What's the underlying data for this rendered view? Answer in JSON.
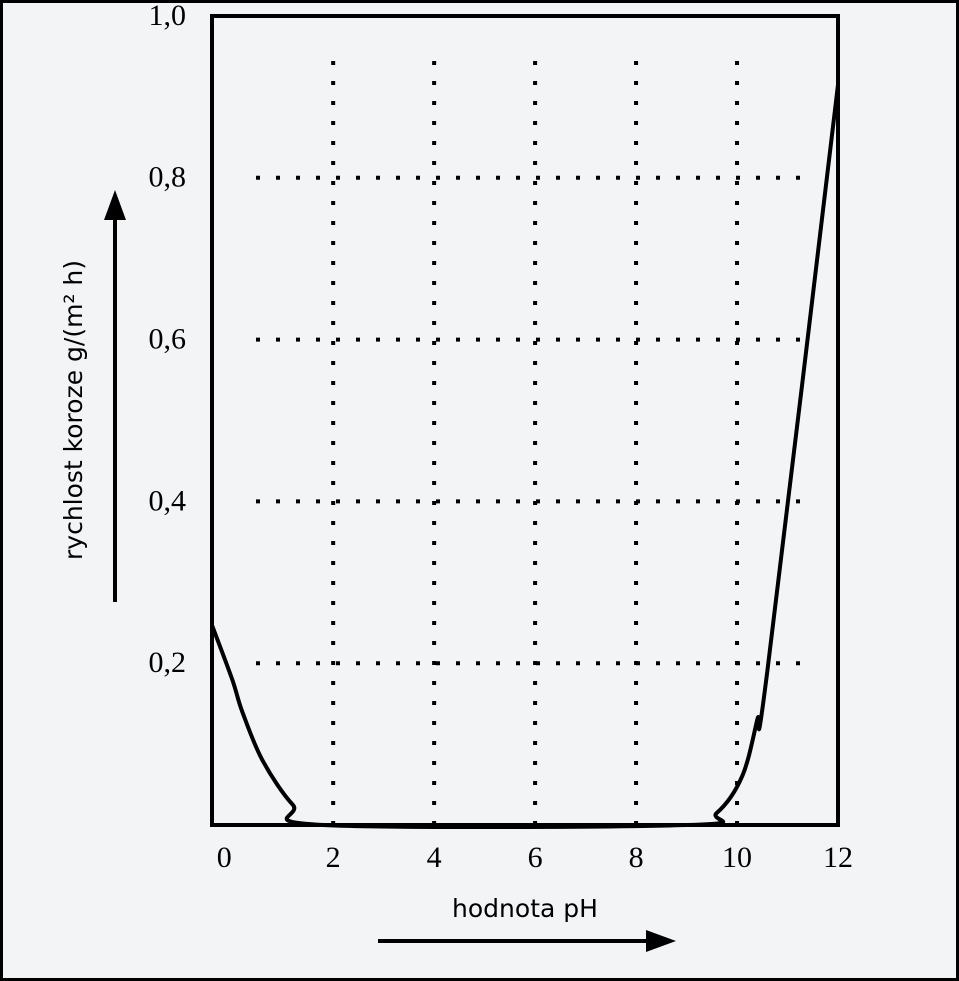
{
  "chart_data": {
    "type": "line",
    "x_label": "hodnota pH",
    "y_label": "rychlost koroze g/(m² h)",
    "series": [
      {
        "color": "#000000",
        "x": [
          -0.4,
          0,
          0.2,
          0.6,
          1.2,
          1.8,
          9.0,
          9.6,
          10.1,
          10.4,
          10.6,
          12
        ],
        "values": [
          0.247,
          0.18,
          0.14,
          0.08,
          0.025,
          0,
          0,
          0.015,
          0.06,
          0.13,
          0.19,
          0.915
        ]
      }
    ],
    "xlim": [
      -0.4,
      12
    ],
    "ylim": [
      0,
      1
    ],
    "xticks": [
      0,
      2,
      4,
      6,
      8,
      10,
      12
    ],
    "yticks": [
      {
        "value": 0.2,
        "label": "0,2"
      },
      {
        "value": 0.4,
        "label": "0,4"
      },
      {
        "value": 0.6,
        "label": "0,6"
      },
      {
        "value": 0.8,
        "label": "0,8"
      },
      {
        "value": 1,
        "label": "1,0"
      }
    ],
    "grid": true
  }
}
